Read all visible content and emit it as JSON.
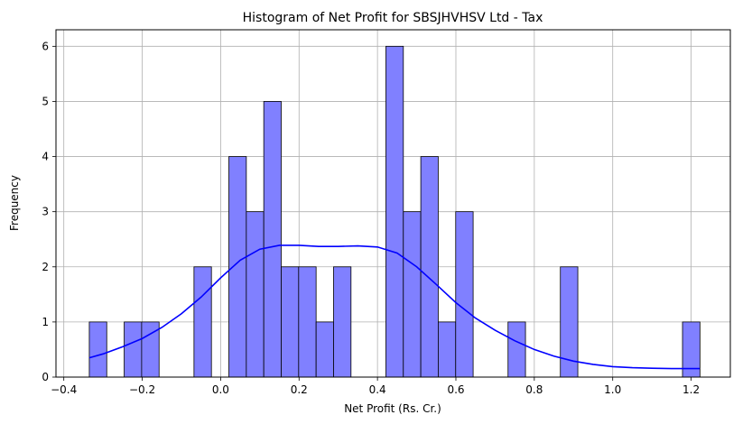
{
  "chart_data": {
    "type": "bar",
    "subtype": "histogram",
    "title": "Histogram of Net Profit for SBSJHVHSV Ltd - Tax",
    "xlabel": "Net Profit (Rs. Cr.)",
    "ylabel": "Frequency",
    "xlim": [
      -0.42,
      1.3
    ],
    "ylim": [
      0,
      6.3
    ],
    "xticks": [
      -0.4,
      -0.2,
      0.0,
      0.2,
      0.4,
      0.6,
      0.8,
      1.0,
      1.2
    ],
    "xtick_labels": [
      "−0.4",
      "−0.2",
      "0.0",
      "0.2",
      "0.4",
      "0.6",
      "0.8",
      "1.0",
      "1.2"
    ],
    "yticks": [
      0,
      1,
      2,
      3,
      4,
      5,
      6
    ],
    "ytick_labels": [
      "0",
      "1",
      "2",
      "3",
      "4",
      "5",
      "6"
    ],
    "grid": true,
    "bar_color": "#8080ff",
    "bar_edge_color": "#000000",
    "kde_color": "#0000ff",
    "bins": {
      "start": -0.335,
      "width": 0.0445,
      "counts": [
        1,
        0,
        1,
        1,
        0,
        0,
        2,
        0,
        4,
        3,
        5,
        2,
        2,
        1,
        2,
        0,
        0,
        6,
        3,
        4,
        1,
        3,
        0,
        0,
        1,
        0,
        0,
        2,
        0,
        0,
        0,
        0,
        0,
        0,
        1
      ]
    },
    "kde": {
      "x": [
        -0.335,
        -0.3,
        -0.25,
        -0.2,
        -0.15,
        -0.1,
        -0.05,
        0.0,
        0.05,
        0.1,
        0.15,
        0.2,
        0.25,
        0.3,
        0.35,
        0.4,
        0.45,
        0.5,
        0.55,
        0.6,
        0.65,
        0.7,
        0.75,
        0.8,
        0.85,
        0.9,
        0.95,
        1.0,
        1.05,
        1.1,
        1.15,
        1.2,
        1.222
      ],
      "y": [
        0.35,
        0.42,
        0.55,
        0.7,
        0.9,
        1.15,
        1.45,
        1.8,
        2.12,
        2.32,
        2.39,
        2.39,
        2.37,
        2.37,
        2.38,
        2.36,
        2.25,
        2.0,
        1.68,
        1.35,
        1.07,
        0.85,
        0.66,
        0.5,
        0.38,
        0.29,
        0.23,
        0.19,
        0.17,
        0.16,
        0.155,
        0.155,
        0.155
      ]
    }
  }
}
